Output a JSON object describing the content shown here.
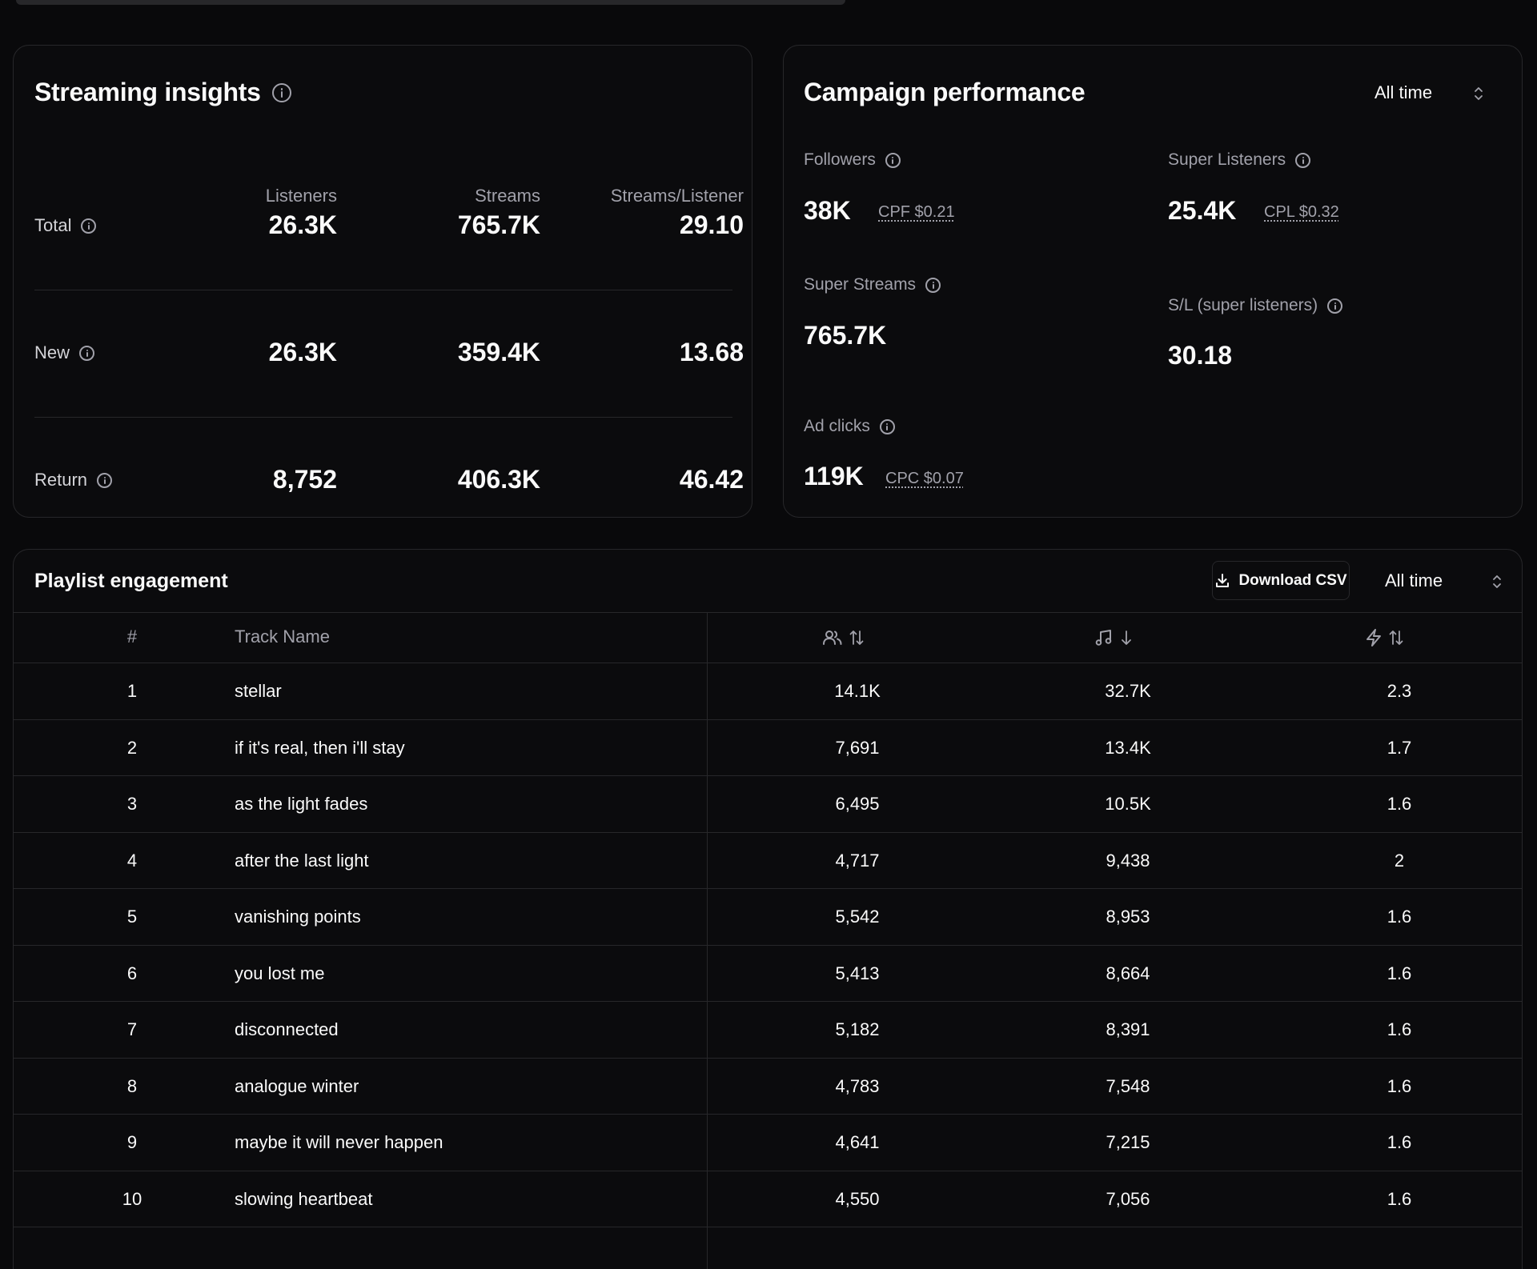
{
  "streaming": {
    "title": "Streaming insights",
    "headers": [
      "Listeners",
      "Streams",
      "Streams/Listener"
    ],
    "rows": [
      {
        "label": "Total",
        "listeners": "26.3K",
        "streams": "765.7K",
        "ratio": "29.10"
      },
      {
        "label": "New",
        "listeners": "26.3K",
        "streams": "359.4K",
        "ratio": "13.68"
      },
      {
        "label": "Return",
        "listeners": "8,752",
        "streams": "406.3K",
        "ratio": "46.42"
      }
    ]
  },
  "campaign": {
    "title": "Campaign performance",
    "range": "All time",
    "followers": {
      "label": "Followers",
      "value": "38K",
      "cost": "CPF $0.21"
    },
    "super_listeners": {
      "label": "Super Listeners",
      "value": "25.4K",
      "cost": "CPL $0.32"
    },
    "super_streams": {
      "label": "Super Streams",
      "value": "765.7K"
    },
    "sl_ratio": {
      "label": "S/L (super listeners)",
      "value": "30.18"
    },
    "ad_clicks": {
      "label": "Ad clicks",
      "value": "119K",
      "cost": "CPC $0.07"
    }
  },
  "playlist": {
    "title": "Playlist engagement",
    "download_label": "Download CSV",
    "range": "All time",
    "col_num": "#",
    "col_name": "Track Name",
    "col_icons": [
      "users-icon",
      "music-note-icon",
      "lightning-icon"
    ],
    "rows": [
      {
        "num": "1",
        "name": "stellar",
        "listeners": "14.1K",
        "streams": "32.7K",
        "ratio": "2.3"
      },
      {
        "num": "2",
        "name": "if it's real, then i'll stay",
        "listeners": "7,691",
        "streams": "13.4K",
        "ratio": "1.7"
      },
      {
        "num": "3",
        "name": "as the light fades",
        "listeners": "6,495",
        "streams": "10.5K",
        "ratio": "1.6"
      },
      {
        "num": "4",
        "name": "after the last light",
        "listeners": "4,717",
        "streams": "9,438",
        "ratio": "2"
      },
      {
        "num": "5",
        "name": "vanishing points",
        "listeners": "5,542",
        "streams": "8,953",
        "ratio": "1.6"
      },
      {
        "num": "6",
        "name": "you lost me",
        "listeners": "5,413",
        "streams": "8,664",
        "ratio": "1.6"
      },
      {
        "num": "7",
        "name": "disconnected",
        "listeners": "5,182",
        "streams": "8,391",
        "ratio": "1.6"
      },
      {
        "num": "8",
        "name": "analogue winter",
        "listeners": "4,783",
        "streams": "7,548",
        "ratio": "1.6"
      },
      {
        "num": "9",
        "name": "maybe it will never happen",
        "listeners": "4,641",
        "streams": "7,215",
        "ratio": "1.6"
      },
      {
        "num": "10",
        "name": "slowing heartbeat",
        "listeners": "4,550",
        "streams": "7,056",
        "ratio": "1.6"
      }
    ]
  }
}
